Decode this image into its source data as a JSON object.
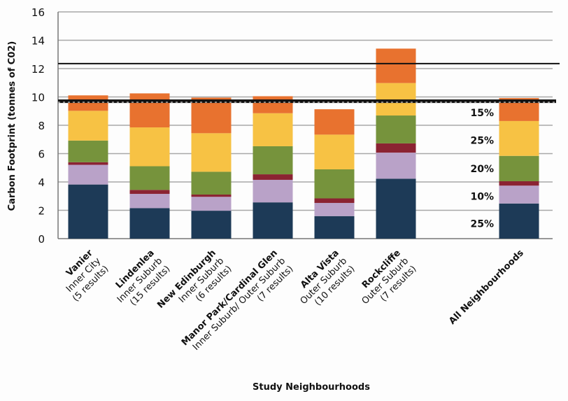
{
  "chart_data": {
    "type": "bar",
    "stacked": true,
    "title": "",
    "xlabel": "Study Neighbourhoods",
    "ylabel": "Carbon Footprint (tonnes of C02)",
    "ylim": [
      0,
      16
    ],
    "yticks": [
      0,
      2,
      4,
      6,
      8,
      10,
      12,
      14,
      16
    ],
    "grid": true,
    "categories": [
      {
        "lines": [
          "Vanier",
          "Inner City",
          "(5 results)"
        ]
      },
      {
        "lines": [
          "Lindenlea",
          "Inner Suburb",
          "(15 results)"
        ]
      },
      {
        "lines": [
          "New Edinburgh",
          "Inner Suburb",
          "(6 results)"
        ]
      },
      {
        "lines": [
          "Manor Park/Cardinal Glen",
          "Inner Suburb/ Outer Suburb",
          "(7 results)"
        ]
      },
      {
        "lines": [
          "Alta Vista",
          "Outer Suburb",
          "(10 results)"
        ]
      },
      {
        "lines": [
          "Rockcliffe",
          "Outer Suburb",
          "(7 results)"
        ]
      },
      {
        "lines": []
      },
      {
        "lines": [
          "All Neighbourhoods"
        ]
      }
    ],
    "series": [
      {
        "color": "#1d3a57",
        "values": [
          3.82,
          2.15,
          1.97,
          2.56,
          1.59,
          4.23,
          null,
          2.48
        ]
      },
      {
        "color": "#b9a2c8",
        "values": [
          1.39,
          1.01,
          0.98,
          1.59,
          0.93,
          1.84,
          null,
          1.26
        ]
      },
      {
        "color": "#8b2332",
        "values": [
          0.18,
          0.28,
          0.16,
          0.39,
          0.32,
          0.65,
          null,
          0.31
        ]
      },
      {
        "color": "#76933c",
        "values": [
          1.53,
          1.67,
          1.61,
          1.98,
          2.05,
          1.97,
          null,
          1.79
        ]
      },
      {
        "color": "#f7c244",
        "values": [
          2.1,
          2.74,
          2.72,
          2.33,
          2.45,
          2.29,
          null,
          2.46
        ]
      },
      {
        "color": "#e8722f",
        "values": [
          1.09,
          2.4,
          2.51,
          1.2,
          1.79,
          2.43,
          null,
          1.62
        ]
      }
    ],
    "reference_lines": [
      {
        "value": 12.35,
        "style": "solid"
      },
      {
        "value": 9.7,
        "style": "dashed"
      }
    ],
    "annotations": [
      {
        "text": "15%",
        "y": 8.9
      },
      {
        "text": "25%",
        "y": 6.95
      },
      {
        "text": "20%",
        "y": 4.95
      },
      {
        "text": "10%",
        "y": 3.0
      },
      {
        "text": "25%",
        "y": 1.05
      }
    ]
  }
}
